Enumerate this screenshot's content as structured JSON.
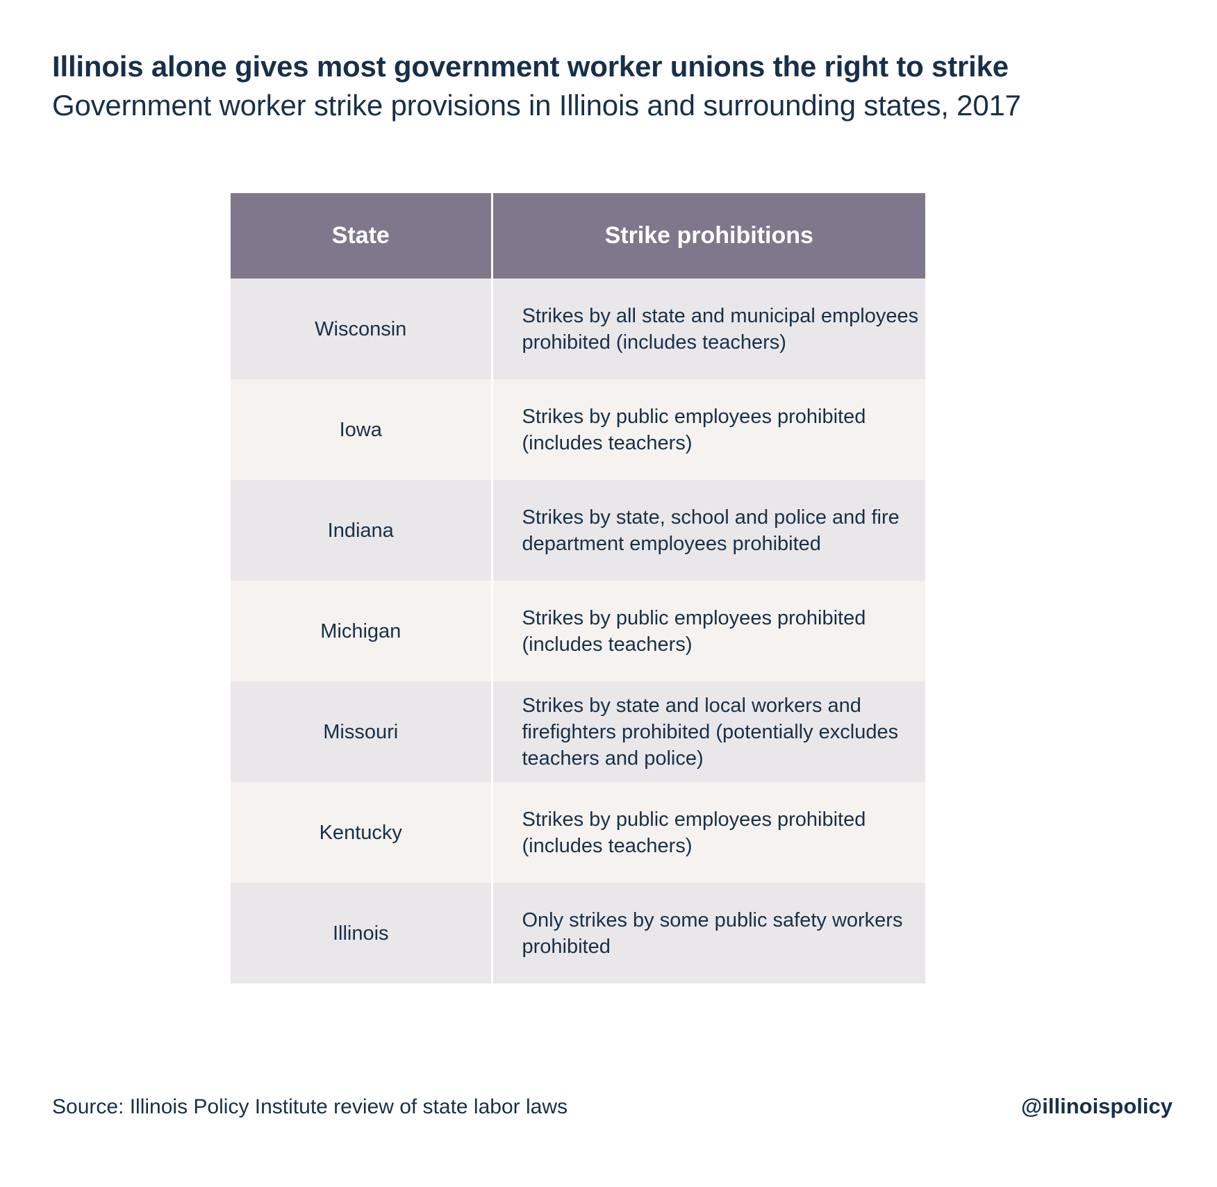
{
  "title": "Illinois alone gives most government worker unions the right to strike",
  "subtitle": "Government worker strike provisions in Illinois and surrounding states, 2017",
  "source": "Source: Illinois Policy Institute review of state labor laws",
  "handle": "@illinoispolicy",
  "colors": {
    "text": "#17304a",
    "header_bg": "#80778c",
    "row_odd_bg": "#e9e7e9",
    "row_even_bg": "#f5f2ef"
  },
  "chart_data": {
    "type": "table",
    "title": "Illinois alone gives most government worker unions the right to strike",
    "subtitle": "Government worker strike provisions in Illinois and surrounding states, 2017",
    "columns": [
      "State",
      "Strike prohibitions"
    ],
    "rows": [
      [
        "Wisconsin",
        "Strikes by all state and municipal employees prohibited (includes teachers)"
      ],
      [
        "Iowa",
        "Strikes by public employees prohibited (includes teachers)"
      ],
      [
        "Indiana",
        "Strikes by state, school and police and fire department employees prohibited"
      ],
      [
        "Michigan",
        "Strikes by public employees prohibited (includes teachers)"
      ],
      [
        "Missouri",
        "Strikes by state and local workers and firefighters prohibited (potentially excludes teachers and police)"
      ],
      [
        "Kentucky",
        "Strikes by public employees prohibited (includes teachers)"
      ],
      [
        "Illinois",
        "Only strikes by some public safety workers prohibited"
      ]
    ]
  }
}
